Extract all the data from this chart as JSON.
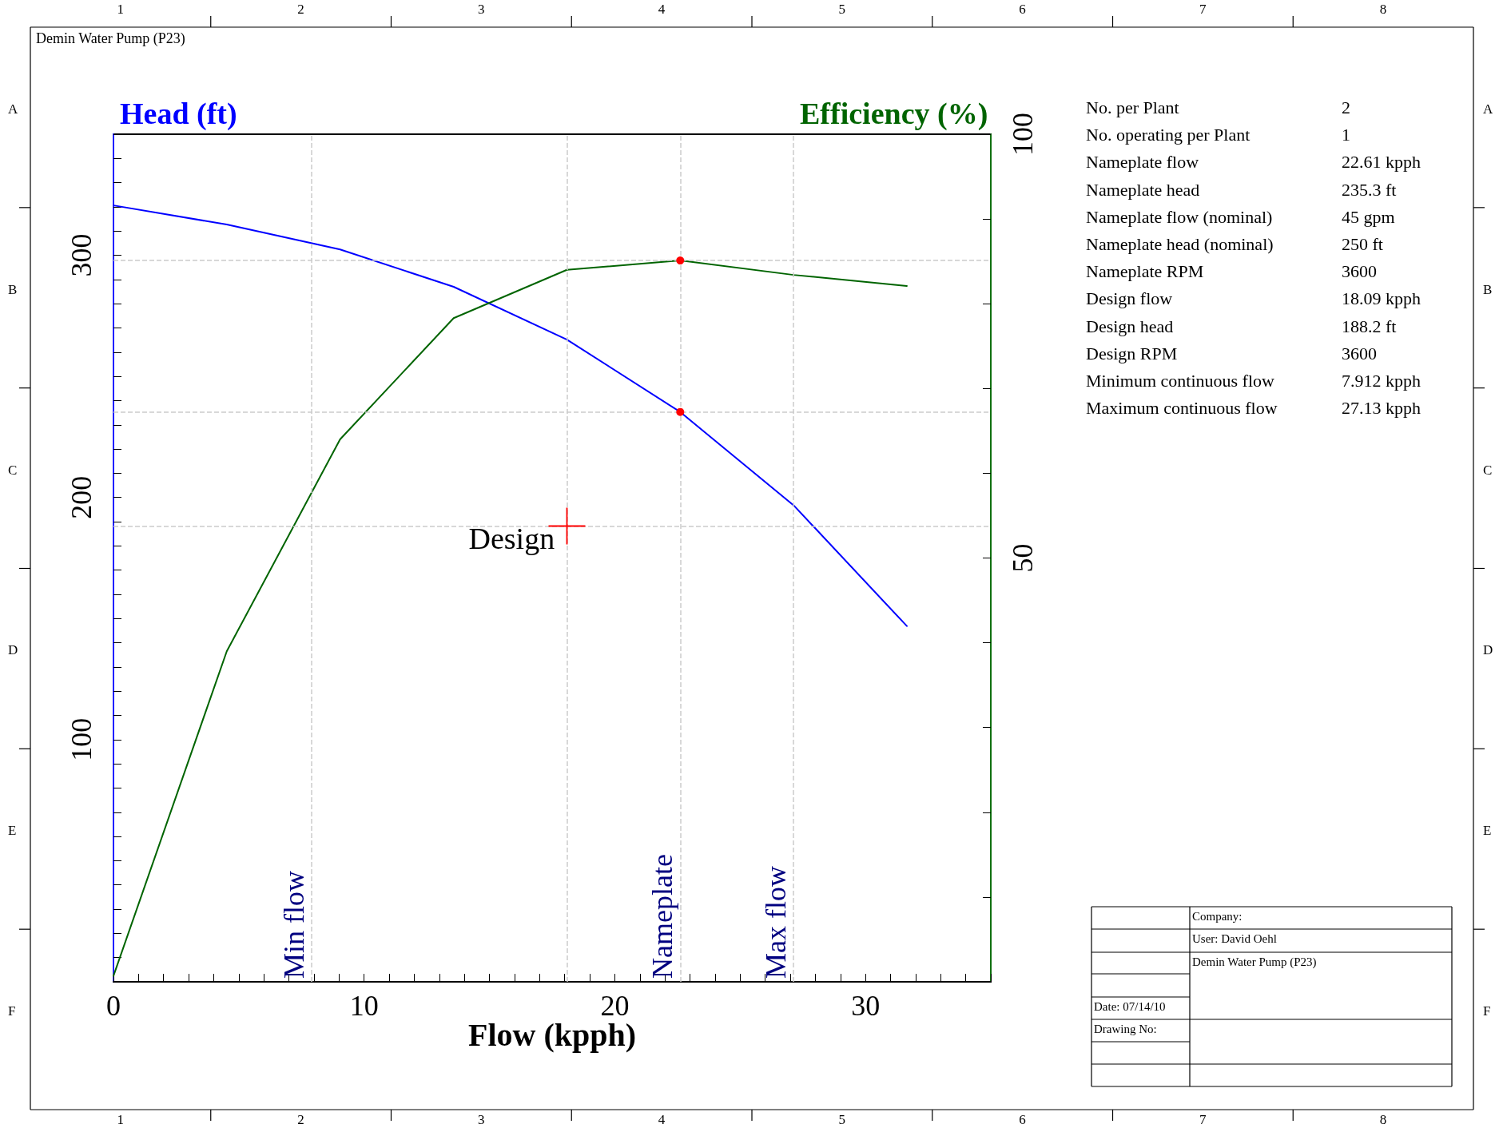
{
  "chart_data": {
    "type": "line",
    "title": "Demin Water Pump (P23)",
    "xlabel": "Flow (kpph)",
    "ylabel": "Head (ft)",
    "y2label": "Efficiency (%)",
    "x": [
      0,
      4.52,
      9.04,
      13.57,
      18.09,
      22.61,
      27.13,
      31.65
    ],
    "series": [
      {
        "color": "#0000ff",
        "values": [
          320.6,
          312.7,
          302.4,
          287,
          265.2,
          235.3,
          196.8,
          146.9
        ]
      },
      {
        "color": "#006400",
        "axis": "y2",
        "values": [
          0.7,
          39,
          64,
          78.3,
          84,
          85.1,
          83.4,
          82.1
        ]
      },
      {
        "type": "scatter",
        "marker": "circle",
        "color": "#ff0000",
        "values": [
          null,
          null,
          null,
          null,
          null,
          235.3,
          null,
          null
        ]
      },
      {
        "type": "scatter",
        "marker": "circle",
        "color": "#ff0000",
        "axis": "y2",
        "values": [
          null,
          null,
          null,
          null,
          null,
          85.1,
          null,
          null
        ]
      },
      {
        "type": "scatter",
        "marker": "cross",
        "name": "Design",
        "color": "#ff0000",
        "values": [
          null,
          null,
          null,
          null,
          188.2,
          null,
          null,
          null
        ]
      }
    ],
    "marker": "none",
    "line_style": "solid",
    "legend": false,
    "grid": false,
    "xlim": [
      0,
      35
    ],
    "ylim": [
      0,
      350
    ],
    "y2lim": [
      0,
      100
    ],
    "xticks": [
      0,
      {
        "value": 1,
        "label": null
      },
      {
        "value": 2,
        "label": null
      },
      {
        "value": 3,
        "label": null
      },
      {
        "value": 4,
        "label": null
      },
      {
        "value": 5,
        "label": null
      },
      {
        "value": 6,
        "label": null
      },
      {
        "value": 7,
        "label": null
      },
      {
        "value": 8,
        "label": null
      },
      {
        "value": 9,
        "label": null
      },
      10,
      {
        "value": 11,
        "label": null
      },
      {
        "value": 12,
        "label": null
      },
      {
        "value": 13,
        "label": null
      },
      {
        "value": 14,
        "label": null
      },
      {
        "value": 15,
        "label": null
      },
      {
        "value": 16,
        "label": null
      },
      {
        "value": 17,
        "label": null
      },
      {
        "value": 18,
        "label": null
      },
      {
        "value": 19,
        "label": null
      },
      20,
      {
        "value": 21,
        "label": null
      },
      {
        "value": 22,
        "label": null
      },
      {
        "value": 23,
        "label": null
      },
      {
        "value": 24,
        "label": null
      },
      {
        "value": 25,
        "label": null
      },
      {
        "value": 26,
        "label": null
      },
      {
        "value": 27,
        "label": null
      },
      {
        "value": 28,
        "label": null
      },
      {
        "value": 29,
        "label": null
      },
      30,
      {
        "value": 31,
        "label": null
      },
      {
        "value": 32,
        "label": null
      },
      {
        "value": 33,
        "label": null
      },
      {
        "value": 34,
        "label": null
      },
      {
        "value": 35,
        "label": null
      }
    ],
    "yticks": [
      {
        "value": 0,
        "label": null
      },
      {
        "value": 10,
        "label": null
      },
      {
        "value": 20,
        "label": null
      },
      {
        "value": 30,
        "label": null
      },
      {
        "value": 40,
        "label": null
      },
      {
        "value": 50,
        "label": null
      },
      {
        "value": 60,
        "label": null
      },
      {
        "value": 70,
        "label": null
      },
      {
        "value": 80,
        "label": null
      },
      {
        "value": 90,
        "label": null
      },
      100,
      {
        "value": 110,
        "label": null
      },
      {
        "value": 120,
        "label": null
      },
      {
        "value": 130,
        "label": null
      },
      {
        "value": 140,
        "label": null
      },
      {
        "value": 150,
        "label": null
      },
      {
        "value": 160,
        "label": null
      },
      {
        "value": 170,
        "label": null
      },
      {
        "value": 180,
        "label": null
      },
      {
        "value": 190,
        "label": null
      },
      200,
      {
        "value": 210,
        "label": null
      },
      {
        "value": 220,
        "label": null
      },
      {
        "value": 230,
        "label": null
      },
      {
        "value": 240,
        "label": null
      },
      {
        "value": 250,
        "label": null
      },
      {
        "value": 260,
        "label": null
      },
      {
        "value": 270,
        "label": null
      },
      {
        "value": 280,
        "label": null
      },
      {
        "value": 290,
        "label": null
      },
      300,
      {
        "value": 310,
        "label": null
      },
      {
        "value": 320,
        "label": null
      },
      {
        "value": 330,
        "label": null
      },
      {
        "value": 340,
        "label": null
      },
      {
        "value": 350,
        "label": null
      }
    ],
    "y2ticks": [
      {
        "value": 0,
        "label": null
      },
      {
        "value": 10,
        "label": null
      },
      {
        "value": 20,
        "label": null
      },
      {
        "value": 30,
        "label": null
      },
      {
        "value": 40,
        "label": null
      },
      50,
      {
        "value": 60,
        "label": null
      },
      {
        "value": 70,
        "label": null
      },
      {
        "value": 80,
        "label": null
      },
      {
        "value": 90,
        "label": null
      },
      100
    ],
    "ref_lines": [
      {
        "axis": "x",
        "value": 7.912,
        "label": "Min flow",
        "color": "#cccccc",
        "line_style": "dashed"
      },
      {
        "axis": "x",
        "value": 18.09,
        "label": null,
        "color": "#cccccc",
        "line_style": "dashed"
      },
      {
        "axis": "x",
        "value": 22.61,
        "label": "Nameplate",
        "color": "#cccccc",
        "line_style": "dashed"
      },
      {
        "axis": "x",
        "value": 27.13,
        "label": "Max flow",
        "color": "#cccccc",
        "line_style": "dashed"
      },
      {
        "axis": "y",
        "value": 235.3,
        "label": null,
        "color": "#cccccc",
        "line_style": "dashed"
      },
      {
        "axis": "y",
        "value": 188.2,
        "label": null,
        "color": "#cccccc",
        "line_style": "dashed"
      },
      {
        "axis": "y2",
        "value": 85.1,
        "label": null,
        "color": "#cccccc",
        "line_style": "dashed"
      }
    ],
    "annotations": [
      "1",
      "2",
      "3",
      "4",
      "5",
      "6",
      "7",
      "8",
      "A",
      "B",
      "C",
      "D",
      "E",
      "F",
      "No. per Plant",
      "2",
      "No. operating per Plant",
      "1",
      "Nameplate flow",
      "22.61 kpph",
      "Nameplate head",
      "235.3 ft",
      "Nameplate flow (nominal)",
      "45 gpm",
      "Nameplate head (nominal)",
      "250 ft",
      "Nameplate RPM",
      "3600",
      "Design flow",
      "18.09 kpph",
      "Design head",
      "188.2 ft",
      "Design RPM",
      "3600",
      "Minimum continuous flow",
      "7.912 kpph",
      "Maximum continuous flow",
      "27.13 kpph",
      "Company:",
      "User: David Oehl",
      "Demin Water Pump (P23)",
      "Date: 07/14/10",
      "Drawing No:"
    ]
  }
}
